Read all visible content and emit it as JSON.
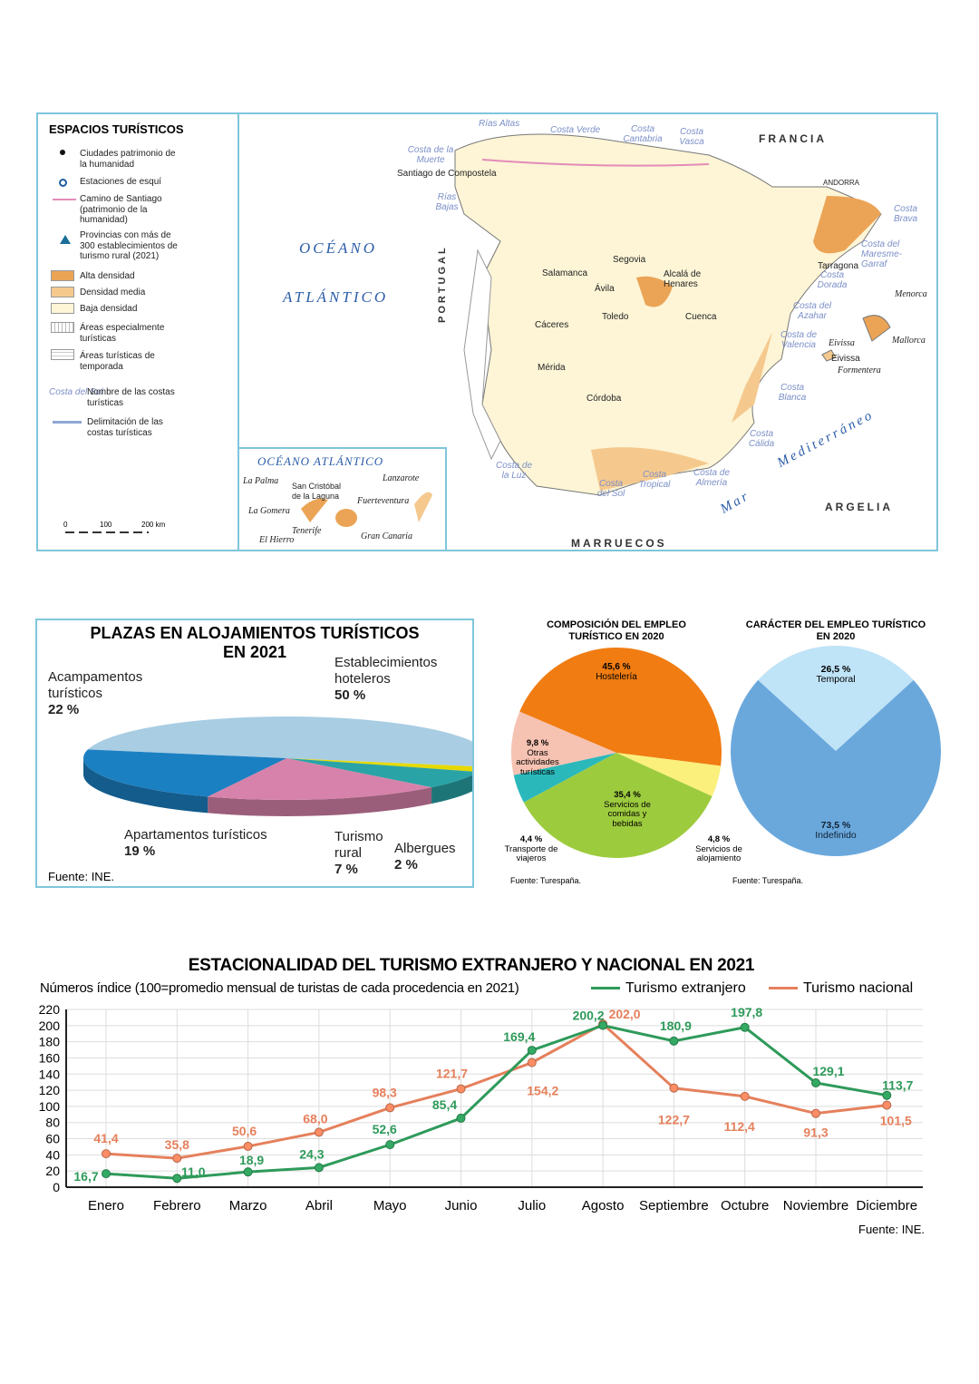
{
  "map": {
    "legend": {
      "title": "ESPACIOS TURÍSTICOS",
      "items": [
        {
          "label": "Ciudades patrimonio de la humanidad",
          "icon": "black-dot-icon"
        },
        {
          "label": "Estaciones de esquí",
          "icon": "ski-ring-icon"
        },
        {
          "label": "Camino de Santiago (patrimonio de la humanidad)",
          "icon": "pink-line-icon"
        },
        {
          "label": "Provincias con más de 300 establecimientos de turismo rural (2021)",
          "icon": "blue-triangle-icon"
        },
        {
          "label": "Alta densidad",
          "color": "#eba456"
        },
        {
          "label": "Densidad media",
          "color": "#f5c98e"
        },
        {
          "label": "Baja densidad",
          "color": "#fdf5d6"
        },
        {
          "label": "Áreas especialmente turísticas",
          "pattern": "vertical-hatch"
        },
        {
          "label": "Áreas turísticas de temporada",
          "pattern": "horizontal-hatch"
        },
        {
          "label": "Nombre de las costas turísticas",
          "sample": "Costa del Sol"
        },
        {
          "label": "Delimitación de las costas turísticas",
          "icon": "blue-line-icon"
        }
      ],
      "scale": [
        "0",
        "100",
        "200 km"
      ]
    },
    "labels": {
      "oceano": "OCÉANO",
      "atlantico": "ATLÁNTICO",
      "francia": "FRANCIA",
      "portugal": "PORTUGAL",
      "andorra": "ANDORRA",
      "argelia": "ARGELIA",
      "marruecos": "MARRUECOS",
      "mar": "Mar",
      "mediterraneo": "Mediterráneo",
      "cities": [
        "Santiago de Compostela",
        "Salamanca",
        "Segovia",
        "Ávila",
        "Alcalá de Henares",
        "Toledo",
        "Cuenca",
        "Cáceres",
        "Mérida",
        "Córdoba",
        "Tarragona",
        "Eivissa"
      ],
      "coasts": [
        "Rías Altas",
        "Costa Verde",
        "Costa Cantabria",
        "Costa Vasca",
        "Costa de la Muerte",
        "Rías Bajas",
        "Costa Brava",
        "Costa del Maresme-Garraf",
        "Costa Dorada",
        "Costa del Azahar",
        "Costa de Valencia",
        "Costa Blanca",
        "Costa Cálida",
        "Costa de Almería",
        "Costa Tropical",
        "Costa del Sol",
        "Costa de la Luz"
      ],
      "islands": [
        "Menorca",
        "Mallorca",
        "Eivissa",
        "Formentera"
      ],
      "canarias": {
        "title": "OCÉANO ATLÁNTICO",
        "items": [
          "La Palma",
          "San Cristóbal de la Laguna",
          "Lanzarote",
          "Fuerteventura",
          "La Gomera",
          "Tenerife",
          "El Hierro",
          "Gran Canaria"
        ]
      }
    }
  },
  "chart_data": [
    {
      "type": "pie",
      "title": "PLAZAS EN ALOJAMIENTOS TURÍSTICOS EN 2021",
      "source": "Fuente: INE.",
      "slices": [
        {
          "label": "Establecimientos hoteleros",
          "value": 50,
          "pct": "50 %",
          "color": "#a9cde3"
        },
        {
          "label": "Albergues",
          "value": 2,
          "pct": "2 %",
          "color": "#e6d900"
        },
        {
          "label": "Turismo rural",
          "value": 7,
          "pct": "7 %",
          "color": "#2aa3a6"
        },
        {
          "label": "Apartamentos turísticos",
          "value": 19,
          "pct": "19 %",
          "color": "#d782aa"
        },
        {
          "label": "Acampamentos turísticos",
          "value": 22,
          "pct": "22 %",
          "color": "#1b80c2"
        }
      ]
    },
    {
      "type": "pie",
      "title": "COMPOSICIÓN DEL EMPLEO TURÍSTICO EN 2020",
      "source": "Fuente: Turespaña.",
      "slices": [
        {
          "label": "Hostelería",
          "value": 45.6,
          "pct": "45,6 %",
          "color": "#f07c12"
        },
        {
          "label": "Servicios de alojamiento",
          "value": 4.8,
          "pct": "4,8 %",
          "color": "#fbf07c"
        },
        {
          "label": "Servicios de comidas y bebidas",
          "value": 35.4,
          "pct": "35,4 %",
          "color": "#9dcb3e"
        },
        {
          "label": "Transporte de viajeros",
          "value": 4.4,
          "pct": "4,4 %",
          "color": "#2bb8bb"
        },
        {
          "label": "Otras actividades turísticas",
          "value": 9.8,
          "pct": "9,8 %",
          "color": "#f6c2b2"
        }
      ]
    },
    {
      "type": "pie",
      "title": "CARÁCTER DEL EMPLEO TURÍSTICO EN 2020",
      "source": "Fuente: Turespaña.",
      "slices": [
        {
          "label": "Temporal",
          "value": 26.5,
          "pct": "26,5 %",
          "color": "#bfe3f7"
        },
        {
          "label": "Indefinido",
          "value": 73.5,
          "pct": "73,5 %",
          "color": "#6aa8dc"
        }
      ]
    },
    {
      "type": "line",
      "title": "ESTACIONALIDAD DEL TURISMO EXTRANJERO Y NACIONAL EN 2021",
      "subtitle": "Números índice (100=promedio mensual de turistas de cada procedencia en 2021)",
      "source": "Fuente: INE.",
      "categories": [
        "Enero",
        "Febrero",
        "Marzo",
        "Abril",
        "Mayo",
        "Junio",
        "Julio",
        "Agosto",
        "Septiembre",
        "Octubre",
        "Noviembre",
        "Diciembre"
      ],
      "ylim": [
        0,
        220
      ],
      "yticks": [
        "0",
        "20",
        "40",
        "60",
        "80",
        "100",
        "120",
        "140",
        "160",
        "180",
        "200",
        "220"
      ],
      "grid": true,
      "legend": "top-right",
      "series": [
        {
          "name": "Turismo extranjero",
          "color": "#2e9a5a",
          "values": [
            16.7,
            11.0,
            18.9,
            24.3,
            52.6,
            85.4,
            169.4,
            200.2,
            180.9,
            197.8,
            129.1,
            113.7
          ],
          "labels": [
            "16,7",
            "11,0",
            "18,9",
            "24,3",
            "52,6",
            "85,4",
            "169,4",
            "200,2",
            "180,9",
            "197,8",
            "129,1",
            "113,7"
          ]
        },
        {
          "name": "Turismo nacional",
          "color": "#e5805c",
          "values": [
            41.4,
            35.8,
            50.6,
            68.0,
            98.3,
            121.7,
            154.2,
            202.0,
            122.7,
            112.4,
            91.3,
            101.5
          ],
          "labels": [
            "41,4",
            "35,8",
            "50,6",
            "68,0",
            "98,3",
            "121,7",
            "154,2",
            "202,0",
            "122,7",
            "112,4",
            "91,3",
            "101,5"
          ]
        }
      ]
    }
  ]
}
